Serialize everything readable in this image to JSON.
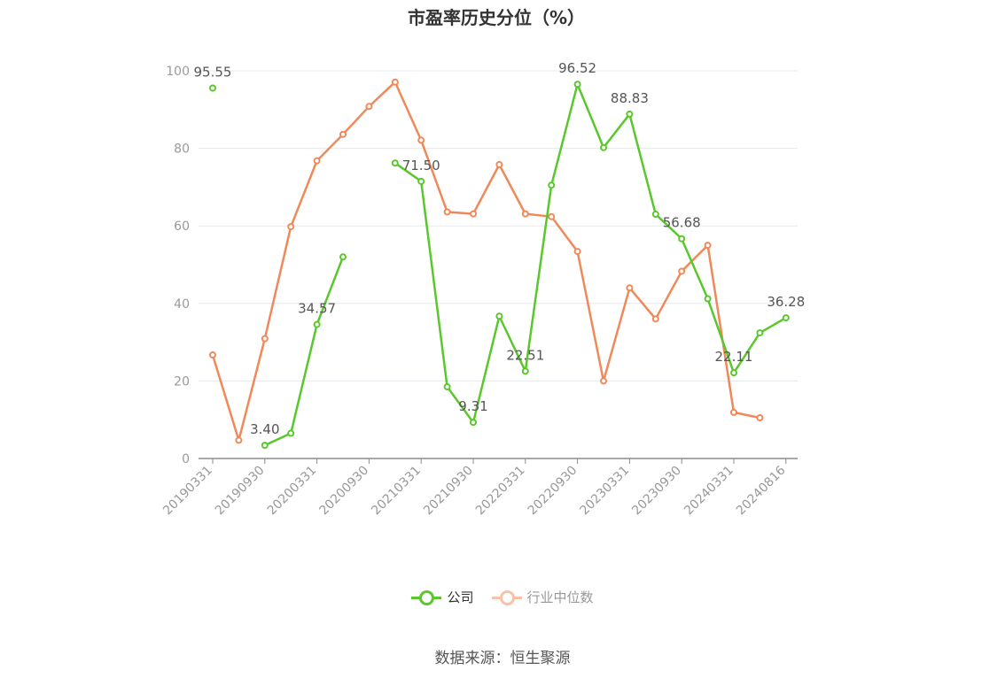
{
  "chart_data": {
    "type": "line",
    "title": "市盈率历史分位（%）",
    "ylim": [
      0,
      100
    ],
    "yticks": [
      0,
      20,
      40,
      60,
      80,
      100
    ],
    "x_labels": [
      "20190331",
      "20190930",
      "20200331",
      "20200930",
      "20210331",
      "20210930",
      "20220331",
      "20220930",
      "20230331",
      "20230930",
      "20240331",
      "20240816"
    ],
    "x_points": [
      "20190331",
      "20190630",
      "20190930",
      "20191231",
      "20200331",
      "20200630",
      "20200930",
      "20201231",
      "20210331",
      "20210630",
      "20210930",
      "20211231",
      "20220331",
      "20220630",
      "20220930",
      "20221231",
      "20230331",
      "20230630",
      "20230930",
      "20231231",
      "20240331",
      "20240630",
      "20240816"
    ],
    "grid": true,
    "legend_position": "bottom",
    "series": [
      {
        "name": "公司",
        "color": "#5ac72c",
        "values": [
          95.55,
          null,
          3.4,
          6.5,
          34.57,
          52.0,
          null,
          76.2,
          71.5,
          18.5,
          9.31,
          36.7,
          22.51,
          70.5,
          96.52,
          80.2,
          88.83,
          63.0,
          56.68,
          41.2,
          22.11,
          32.4,
          36.28
        ],
        "labels": {
          "0": "95.55",
          "2": "3.40",
          "4": "34.57",
          "8": "71.50",
          "10": "9.31",
          "12": "22.51",
          "14": "96.52",
          "16": "88.83",
          "18": "56.68",
          "20": "22.11",
          "22": "36.28"
        }
      },
      {
        "name": "行业中位数",
        "color": "#f0895a",
        "values": [
          26.7,
          4.7,
          30.9,
          59.8,
          76.8,
          83.6,
          90.8,
          97.1,
          82.1,
          63.6,
          63.1,
          75.8,
          63.1,
          62.4,
          53.4,
          20.0,
          44.0,
          36.0,
          48.3,
          55.0,
          11.9,
          10.5,
          null
        ]
      }
    ]
  },
  "legend": {
    "company": "公司",
    "industry": "行业中位数"
  },
  "source": "数据来源：恒生聚源"
}
